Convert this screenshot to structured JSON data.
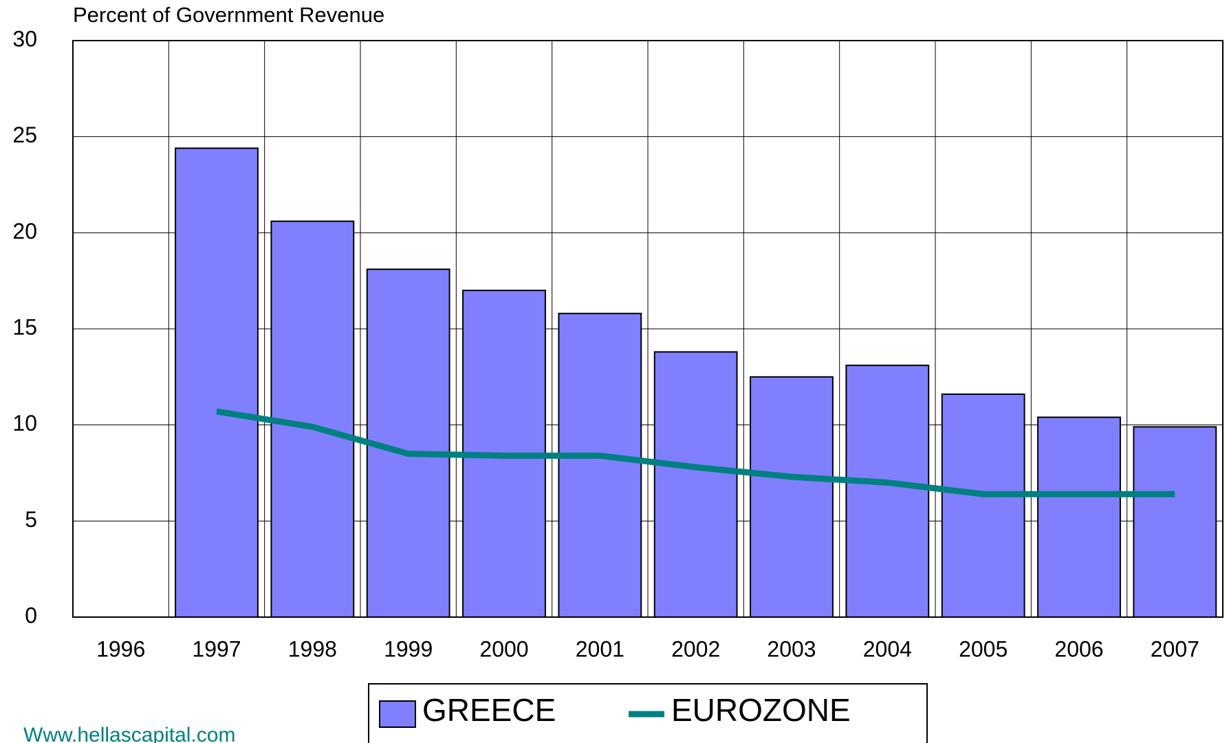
{
  "chart_data": {
    "type": "bar",
    "title": "Percent of Government Revenue",
    "categories": [
      "1996",
      "1997",
      "1998",
      "1999",
      "2000",
      "2001",
      "2002",
      "2003",
      "2004",
      "2005",
      "2006",
      "2007"
    ],
    "series": [
      {
        "name": "GREECE",
        "type": "bar",
        "color": "#8080ff",
        "values": [
          null,
          24.4,
          20.6,
          18.1,
          17.0,
          15.8,
          13.8,
          12.5,
          13.1,
          11.6,
          10.4,
          9.9
        ]
      },
      {
        "name": "EUROZONE",
        "type": "line",
        "color": "#008080",
        "values": [
          null,
          10.7,
          9.9,
          8.5,
          8.4,
          8.4,
          7.8,
          7.3,
          7.0,
          6.4,
          6.4,
          6.4
        ]
      }
    ],
    "ylim": [
      0,
      30
    ],
    "yticks": [
      0,
      5,
      10,
      15,
      20,
      25,
      30
    ],
    "grid": true,
    "legend": "bottom",
    "source": "Www.hellascapital.com"
  }
}
